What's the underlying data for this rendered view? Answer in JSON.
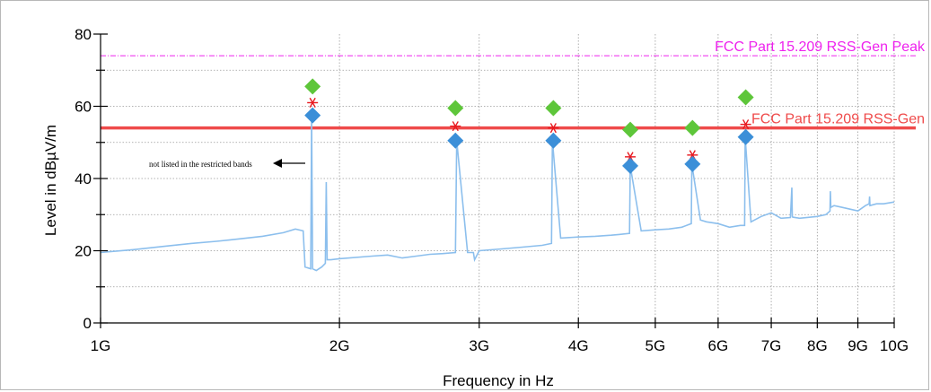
{
  "chart_data": {
    "type": "line",
    "xlabel": "Frequency in Hz",
    "ylabel": "Level in dBµV/m",
    "x_scale": "log",
    "xlim": [
      1000000000,
      10000000000
    ],
    "ylim": [
      0,
      80
    ],
    "y_ticks": [
      0,
      20,
      40,
      60,
      80
    ],
    "y_tick_labels": [
      "0",
      "20",
      "40",
      "60",
      "80"
    ],
    "x_ticks": [
      1000000000,
      2000000000,
      3000000000,
      4000000000,
      5000000000,
      6000000000,
      7000000000,
      8000000000,
      9000000000,
      10000000000
    ],
    "x_tick_labels": [
      "1G",
      "2G",
      "3G",
      "4G",
      "5G",
      "6G",
      "7G",
      "8G",
      "9G",
      "10G"
    ],
    "grid": true,
    "colors": {
      "noise": "#8cbfed",
      "limit_avg": "#ef4b4b",
      "limit_peak": "#ee22ee",
      "peak_marker": "#5ec63a",
      "avg_marker": "#3b8fd8",
      "star": "#e8181e"
    },
    "limit_lines": [
      {
        "label": "FCC Part 15.209   RSS-Gen Peak",
        "y": 74,
        "style": "dashdot",
        "color": "#ee22ee"
      },
      {
        "label": "FCC Part 15.209   RSS-Gen",
        "y": 54,
        "style": "solid",
        "color": "#ef4b4b"
      }
    ],
    "annotation": {
      "text": "not listed in the restricted bands",
      "arrow": "left"
    },
    "noise_floor": {
      "x": [
        1000000000,
        1100000000,
        1200000000,
        1300000000,
        1400000000,
        1500000000,
        1600000000,
        1700000000,
        1760000000,
        1800000000,
        1810000000,
        1840000000,
        1845000000,
        1850000000,
        1870000000,
        1900000000,
        1920000000,
        1925000000,
        1930000000,
        1950000000,
        2000000000,
        2200000000,
        2300000000,
        2400000000,
        2500000000,
        2600000000,
        2700000000,
        2800000000,
        2810000000,
        2900000000,
        2950000000,
        2960000000,
        3000000000,
        3200000000,
        3400000000,
        3600000000,
        3700000000,
        3710000000,
        3800000000,
        4000000000,
        4200000000,
        4400000000,
        4500000000,
        4640000000,
        4650000000,
        4800000000,
        5000000000,
        5200000000,
        5400000000,
        5550000000,
        5560000000,
        5700000000,
        5800000000,
        6000000000,
        6200000000,
        6400000000,
        6480000000,
        6490000000,
        6600000000,
        6800000000,
        7000000000,
        7200000000,
        7400000000,
        7430000000,
        7440000000,
        7450000000,
        7600000000,
        8000000000,
        8200000000,
        8300000000,
        8310000000,
        8320000000,
        8400000000,
        8600000000,
        8800000000,
        9000000000,
        9200000000,
        9300000000,
        9310000000,
        9320000000,
        9500000000,
        9700000000,
        10000000000
      ],
      "y": [
        19.5,
        20.3,
        21.2,
        22.0,
        22.6,
        23.3,
        24.0,
        25.0,
        26.0,
        25.5,
        15.5,
        15.0,
        57.5,
        15.0,
        14.5,
        15.5,
        16.5,
        39.0,
        17.5,
        17.5,
        17.8,
        18.5,
        18.8,
        18.0,
        18.5,
        19.0,
        19.2,
        19.5,
        50.5,
        19.5,
        19.5,
        17.5,
        20.0,
        20.5,
        21.0,
        21.5,
        22.0,
        50.5,
        23.5,
        23.8,
        24.0,
        24.3,
        24.5,
        24.8,
        43.5,
        25.5,
        25.8,
        26.0,
        26.5,
        27.5,
        44.0,
        28.5,
        28.0,
        27.5,
        26.5,
        27.0,
        27.0,
        51.5,
        28.0,
        29.5,
        30.5,
        29.0,
        29.2,
        37.5,
        29.5,
        29.3,
        29.0,
        29.5,
        30.0,
        31.0,
        36.5,
        32.0,
        32.5,
        32.0,
        31.5,
        31.0,
        32.5,
        33.0,
        35.0,
        32.5,
        33.0,
        33.0,
        33.5
      ]
    },
    "series": [
      {
        "name": "",
        "marker": "diamond",
        "color": "#5ec63a",
        "x": [
          1850000000,
          2800000000,
          3720000000,
          4650000000,
          5570000000,
          6500000000
        ],
        "y": [
          65.5,
          59.5,
          59.5,
          53.5,
          54.0,
          62.5
        ]
      },
      {
        "name": "",
        "marker": "star",
        "color": "#e8181e",
        "x": [
          1850000000,
          2800000000,
          3720000000,
          4650000000,
          5570000000,
          6500000000
        ],
        "y": [
          61.0,
          54.5,
          54.0,
          46.0,
          46.5,
          55.0
        ]
      },
      {
        "name": "",
        "marker": "diamond",
        "color": "#3b8fd8",
        "x": [
          1850000000,
          2800000000,
          3720000000,
          4650000000,
          5570000000,
          6500000000
        ],
        "y": [
          57.5,
          50.5,
          50.5,
          43.5,
          44.0,
          51.5
        ]
      }
    ]
  }
}
